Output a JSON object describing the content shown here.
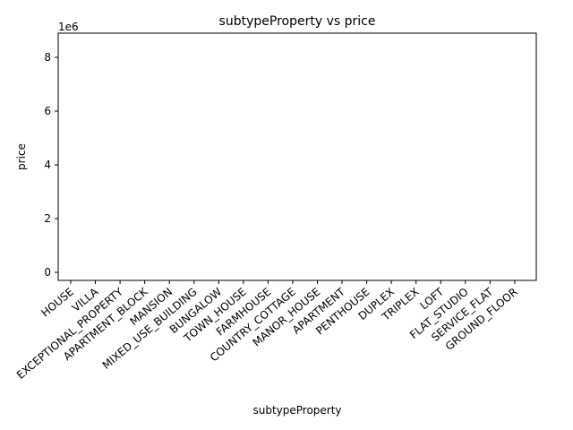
{
  "chart_data": {
    "type": "scatter",
    "title": "subtypeProperty vs price",
    "xlabel": "subtypeProperty",
    "ylabel": "price",
    "y_offset_label": "1e6",
    "categories": [
      "HOUSE",
      "VILLA",
      "EXCEPTIONAL_PROPERTY",
      "APARTMENT_BLOCK",
      "MANSION",
      "MIXED_USE_BUILDING",
      "BUNGALOW",
      "TOWN_HOUSE",
      "FARMHOUSE",
      "COUNTRY_COTTAGE",
      "MANOR_HOUSE",
      "APARTMENT",
      "PENTHOUSE",
      "DUPLEX",
      "TRIPLEX",
      "LOFT",
      "FLAT_STUDIO",
      "SERVICE_FLAT",
      "GROUND_FLOOR"
    ],
    "values": [],
    "ylim": [
      -300000,
      8900000
    ],
    "yticks": [
      0,
      2000000,
      4000000,
      6000000,
      8000000
    ],
    "ytick_labels": [
      "0",
      "2",
      "4",
      "6",
      "8"
    ],
    "grid": false,
    "legend": "none"
  }
}
